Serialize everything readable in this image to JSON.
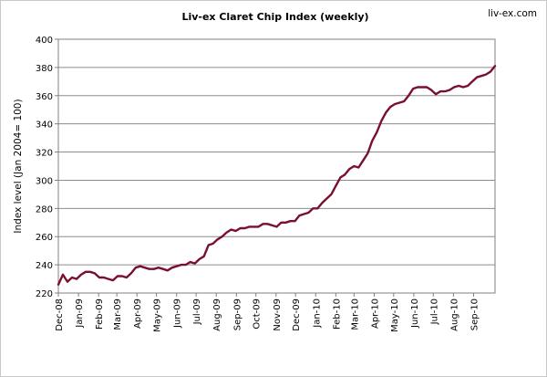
{
  "chart_data": {
    "type": "line",
    "title": "Liv-ex Claret Chip Index (weekly)",
    "watermark": "liv-ex.com",
    "xlabel": "",
    "ylabel": "Index level (Jan 2004= 100)",
    "ylim": [
      220,
      400
    ],
    "yticks": [
      220,
      240,
      260,
      280,
      300,
      320,
      340,
      360,
      380,
      400
    ],
    "grid": "horizontal",
    "legend": "none",
    "line_color": "#7a0f2e",
    "x_tick_labels": [
      "Dec-08",
      "Jan-09",
      "Feb-09",
      "Mar-09",
      "Apr-09",
      "May-09",
      "Jun-09",
      "Jul-09",
      "Aug-09",
      "Sep-09",
      "Oct-09",
      "Nov-09",
      "Dec-09",
      "Jan-10",
      "Feb-10",
      "Mar-10",
      "Apr-10",
      "May-10",
      "Jun-10",
      "Jul-10",
      "Aug-10",
      "Sep-10"
    ],
    "x_start": "2008-12-01",
    "series": [
      {
        "values": [
          [
            "2008-12-01",
            226
          ],
          [
            "2008-12-08",
            233
          ],
          [
            "2008-12-15",
            228
          ],
          [
            "2008-12-22",
            231
          ],
          [
            "2008-12-29",
            230
          ],
          [
            "2009-01-05",
            233
          ],
          [
            "2009-01-12",
            235
          ],
          [
            "2009-01-19",
            235
          ],
          [
            "2009-01-26",
            234
          ],
          [
            "2009-02-02",
            231
          ],
          [
            "2009-02-09",
            231
          ],
          [
            "2009-02-16",
            230
          ],
          [
            "2009-02-23",
            229
          ],
          [
            "2009-03-02",
            232
          ],
          [
            "2009-03-09",
            232
          ],
          [
            "2009-03-16",
            231
          ],
          [
            "2009-03-23",
            234
          ],
          [
            "2009-03-30",
            238
          ],
          [
            "2009-04-06",
            239
          ],
          [
            "2009-04-13",
            238
          ],
          [
            "2009-04-20",
            237
          ],
          [
            "2009-04-27",
            237
          ],
          [
            "2009-05-04",
            238
          ],
          [
            "2009-05-11",
            237
          ],
          [
            "2009-05-18",
            236
          ],
          [
            "2009-05-25",
            238
          ],
          [
            "2009-06-01",
            239
          ],
          [
            "2009-06-08",
            240
          ],
          [
            "2009-06-15",
            240
          ],
          [
            "2009-06-22",
            242
          ],
          [
            "2009-06-29",
            241
          ],
          [
            "2009-07-06",
            244
          ],
          [
            "2009-07-13",
            246
          ],
          [
            "2009-07-20",
            254
          ],
          [
            "2009-07-27",
            255
          ],
          [
            "2009-08-03",
            258
          ],
          [
            "2009-08-10",
            260
          ],
          [
            "2009-08-17",
            263
          ],
          [
            "2009-08-24",
            265
          ],
          [
            "2009-08-31",
            264
          ],
          [
            "2009-09-07",
            266
          ],
          [
            "2009-09-14",
            266
          ],
          [
            "2009-09-21",
            267
          ],
          [
            "2009-09-28",
            267
          ],
          [
            "2009-10-05",
            267
          ],
          [
            "2009-10-12",
            269
          ],
          [
            "2009-10-19",
            269
          ],
          [
            "2009-10-26",
            268
          ],
          [
            "2009-11-02",
            267
          ],
          [
            "2009-11-09",
            270
          ],
          [
            "2009-11-16",
            270
          ],
          [
            "2009-11-23",
            271
          ],
          [
            "2009-11-30",
            271
          ],
          [
            "2009-12-07",
            275
          ],
          [
            "2009-12-14",
            276
          ],
          [
            "2009-12-21",
            277
          ],
          [
            "2009-12-28",
            280
          ],
          [
            "2010-01-04",
            280
          ],
          [
            "2010-01-11",
            284
          ],
          [
            "2010-01-18",
            287
          ],
          [
            "2010-01-25",
            290
          ],
          [
            "2010-02-01",
            296
          ],
          [
            "2010-02-08",
            302
          ],
          [
            "2010-02-15",
            304
          ],
          [
            "2010-02-22",
            308
          ],
          [
            "2010-03-01",
            310
          ],
          [
            "2010-03-08",
            309
          ],
          [
            "2010-03-15",
            314
          ],
          [
            "2010-03-22",
            319
          ],
          [
            "2010-03-29",
            328
          ],
          [
            "2010-04-05",
            334
          ],
          [
            "2010-04-12",
            342
          ],
          [
            "2010-04-19",
            348
          ],
          [
            "2010-04-26",
            352
          ],
          [
            "2010-05-03",
            354
          ],
          [
            "2010-05-10",
            355
          ],
          [
            "2010-05-17",
            356
          ],
          [
            "2010-05-24",
            360
          ],
          [
            "2010-05-31",
            365
          ],
          [
            "2010-06-07",
            366
          ],
          [
            "2010-06-14",
            366
          ],
          [
            "2010-06-21",
            366
          ],
          [
            "2010-06-28",
            364
          ],
          [
            "2010-07-05",
            361
          ],
          [
            "2010-07-12",
            363
          ],
          [
            "2010-07-19",
            363
          ],
          [
            "2010-07-26",
            364
          ],
          [
            "2010-08-02",
            366
          ],
          [
            "2010-08-09",
            367
          ],
          [
            "2010-08-16",
            366
          ],
          [
            "2010-08-23",
            367
          ],
          [
            "2010-08-30",
            370
          ],
          [
            "2010-09-06",
            373
          ],
          [
            "2010-09-13",
            374
          ],
          [
            "2010-09-20",
            375
          ],
          [
            "2010-09-27",
            377
          ],
          [
            "2010-10-04",
            381
          ]
        ]
      }
    ]
  }
}
